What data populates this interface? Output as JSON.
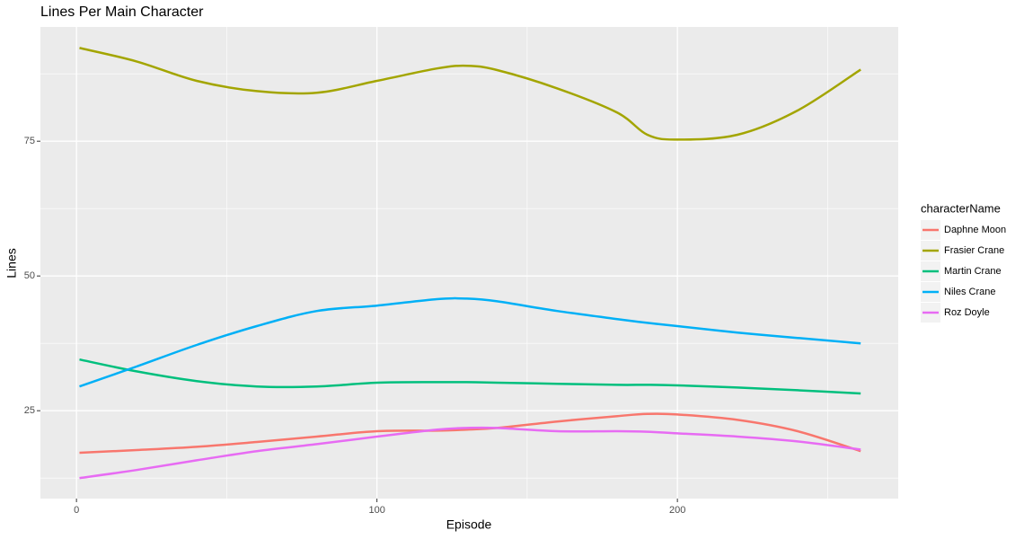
{
  "chart_data": {
    "type": "line",
    "title": "Lines Per Main Character",
    "x_label": "Episode",
    "y_label": "Lines",
    "legend_title": "characterName",
    "legend": "right",
    "x": [
      1,
      20,
      40,
      60,
      80,
      100,
      120,
      130,
      140,
      160,
      180,
      190,
      200,
      220,
      240,
      261
    ],
    "series": [
      {
        "name": "Daphne Moon",
        "color": "#F8766D",
        "values": [
          17.2,
          17.7,
          18.3,
          19.2,
          20.2,
          21.2,
          21.3,
          21.5,
          21.8,
          23,
          24,
          24.4,
          24.3,
          23.3,
          21.2,
          17.5
        ]
      },
      {
        "name": "Frasier Crane",
        "color": "#A3A500",
        "values": [
          92.3,
          89.8,
          86.2,
          84.3,
          84.0,
          86.2,
          88.5,
          89,
          88.2,
          84.8,
          80.3,
          76.2,
          75.3,
          76.2,
          80.7,
          88.3
        ]
      },
      {
        "name": "Martin Crane",
        "color": "#00BF7D",
        "values": [
          34.5,
          32.3,
          30.5,
          29.5,
          29.5,
          30.2,
          30.3,
          30.3,
          30.2,
          30,
          29.8,
          29.8,
          29.7,
          29.3,
          28.8,
          28.2
        ]
      },
      {
        "name": "Niles Crane",
        "color": "#00B0F6",
        "values": [
          29.5,
          33.2,
          37.2,
          40.7,
          43.5,
          44.5,
          45.7,
          45.8,
          45.3,
          43.5,
          42,
          41.3,
          40.7,
          39.5,
          38.5,
          37.5
        ]
      },
      {
        "name": "Roz Doyle",
        "color": "#E76BF3",
        "values": [
          12.5,
          14,
          15.8,
          17.5,
          18.8,
          20.2,
          21.5,
          21.8,
          21.8,
          21.2,
          21.2,
          21.1,
          20.8,
          20.2,
          19.3,
          17.8
        ]
      }
    ],
    "xlim": [
      -12,
      273.5
    ],
    "xticks": [
      0,
      100,
      200
    ],
    "ylim": [
      8.7,
      96.2
    ],
    "yticks": [
      25,
      50,
      75
    ],
    "grid": true
  }
}
